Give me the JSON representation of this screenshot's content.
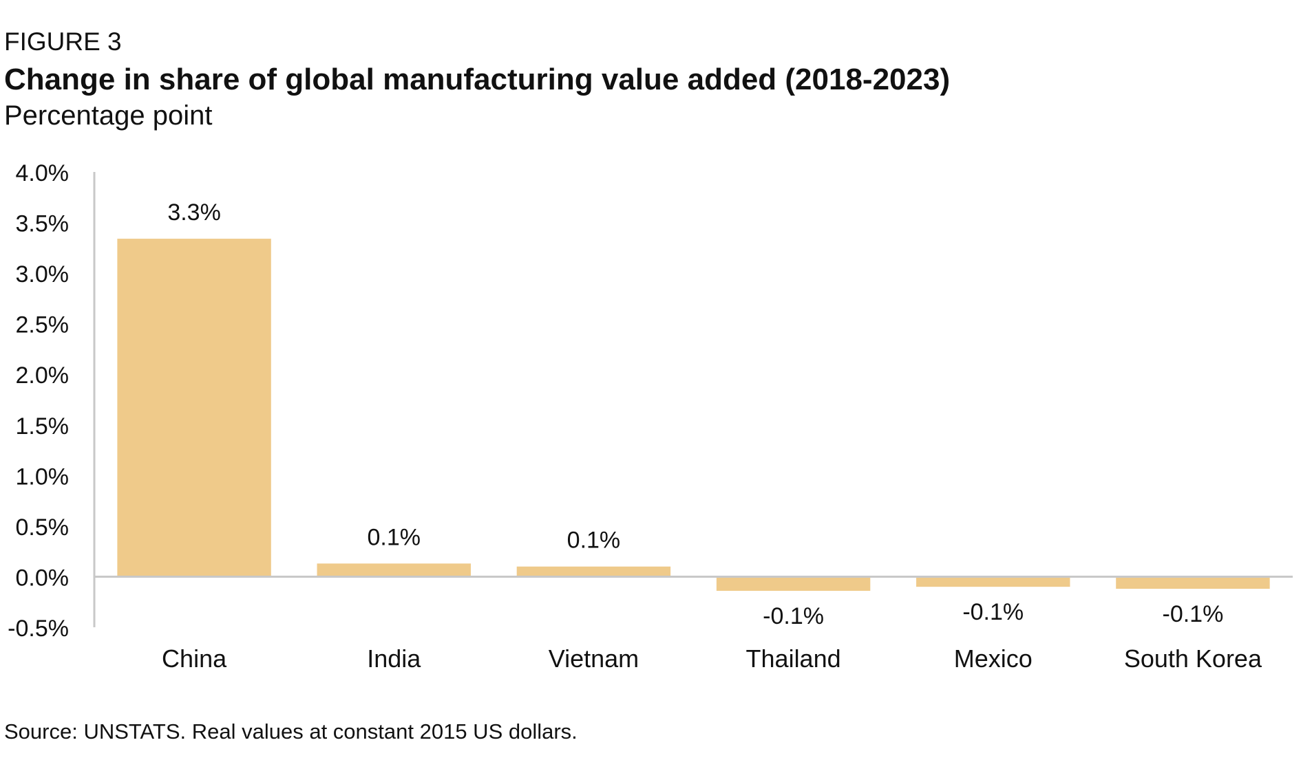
{
  "figure_label": "FIGURE 3",
  "source_note": "Source: UNSTATS. Real values at constant 2015 US dollars.",
  "chart_data": {
    "type": "bar",
    "title": "Change in share of global manufacturing value added (2018-2023)",
    "subtitle": "Percentage point",
    "xlabel": "",
    "ylabel": "",
    "categories": [
      "China",
      "India",
      "Vietnam",
      "Thailand",
      "Mexico",
      "South Korea"
    ],
    "values": [
      3.34,
      0.13,
      0.1,
      -0.14,
      -0.1,
      -0.12
    ],
    "data_labels": [
      "3.3%",
      "0.1%",
      "0.1%",
      "-0.1%",
      "-0.1%",
      "-0.1%"
    ],
    "ylim": [
      -0.5,
      4.0
    ],
    "y_ticks": [
      4.0,
      3.5,
      3.0,
      2.5,
      2.0,
      1.5,
      1.0,
      0.5,
      0.0,
      -0.5
    ],
    "y_tick_labels": [
      "4.0%",
      "3.5%",
      "3.0%",
      "2.5%",
      "2.0%",
      "1.5%",
      "1.0%",
      "0.5%",
      "0.0%",
      "-0.5%"
    ],
    "grid": false,
    "legend": "none",
    "colors": {
      "bar": "#EFCA8A",
      "axis": "#c8c8c8",
      "text": "#111111"
    }
  }
}
